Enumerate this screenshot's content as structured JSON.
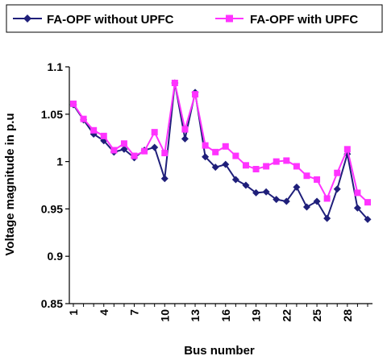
{
  "chart_data": {
    "type": "line",
    "xlabel": "Bus number",
    "ylabel": "Voltage magnitude in p.u",
    "ylim": [
      0.85,
      1.1
    ],
    "xlim": [
      1,
      30
    ],
    "y_ticks": [
      "0.85",
      "0.9",
      "0.95",
      "1",
      "1.05",
      "1.1"
    ],
    "x_ticks": [
      "1",
      "4",
      "7",
      "10",
      "13",
      "16",
      "19",
      "22",
      "25",
      "28"
    ],
    "grid": false,
    "legend_position": "top",
    "x": [
      1,
      2,
      3,
      4,
      5,
      6,
      7,
      8,
      9,
      10,
      11,
      12,
      13,
      14,
      15,
      16,
      17,
      18,
      19,
      20,
      21,
      22,
      23,
      24,
      25,
      26,
      27,
      28,
      29,
      30
    ],
    "series": [
      {
        "name": "FA-OPF without UPFC",
        "color": "#1f1f7a",
        "marker": "diamond",
        "values": [
          1.06,
          1.044,
          1.029,
          1.022,
          1.01,
          1.013,
          1.004,
          1.012,
          1.015,
          0.982,
          1.083,
          1.024,
          1.073,
          1.005,
          0.994,
          0.997,
          0.981,
          0.975,
          0.967,
          0.968,
          0.96,
          0.958,
          0.973,
          0.952,
          0.958,
          0.94,
          0.971,
          1.008,
          0.951,
          0.939
        ]
      },
      {
        "name": "FA-OPF with UPFC",
        "color": "#ff33ff",
        "marker": "square",
        "values": [
          1.061,
          1.045,
          1.033,
          1.027,
          1.012,
          1.019,
          1.006,
          1.011,
          1.031,
          1.009,
          1.083,
          1.034,
          1.071,
          1.017,
          1.01,
          1.016,
          1.006,
          0.996,
          0.992,
          0.995,
          1.0,
          1.001,
          0.995,
          0.985,
          0.981,
          0.961,
          0.988,
          1.013,
          0.967,
          0.957
        ]
      }
    ]
  }
}
